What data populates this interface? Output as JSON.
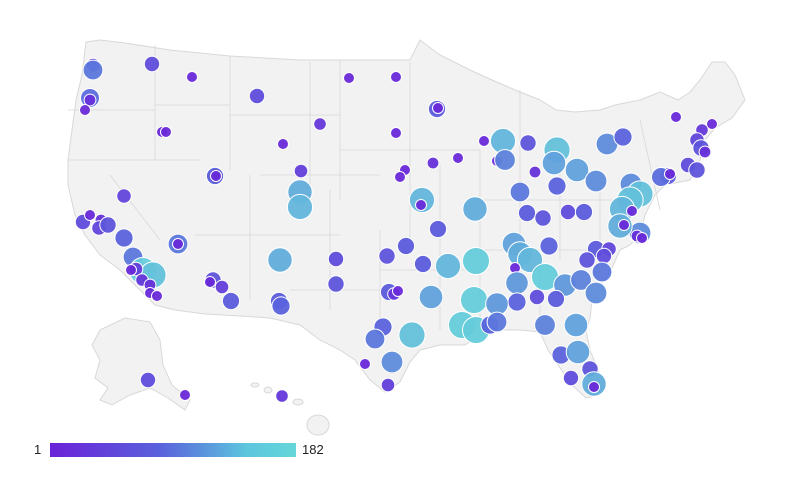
{
  "legend": {
    "min_label": "1",
    "max_label": "182",
    "color_low": "#6a22d8",
    "color_high": "#66d6da"
  },
  "map": {
    "land_color": "#f2f2f2",
    "border_color": "#d8d8d8",
    "marker_stroke": "#ffffff"
  }
}
